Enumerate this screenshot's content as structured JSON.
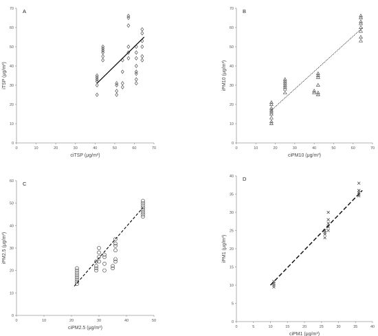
{
  "chart_data": [
    {
      "type": "scatter",
      "panel_label": "A",
      "xlabel": "ciTSP (μg/m³)",
      "ylabel": "iTSP (μg/m³)",
      "xlim": [
        0,
        70
      ],
      "ylim": [
        0,
        70
      ],
      "xticks": [
        0,
        10,
        20,
        30,
        40,
        50,
        60,
        70
      ],
      "yticks": [
        0,
        10,
        20,
        30,
        40,
        50,
        60,
        70
      ],
      "marker": "diamond",
      "points": [
        [
          41,
          25
        ],
        [
          41,
          30
        ],
        [
          41,
          32
        ],
        [
          41,
          33
        ],
        [
          41,
          34
        ],
        [
          41,
          35
        ],
        [
          44,
          43
        ],
        [
          44,
          45
        ],
        [
          44,
          47
        ],
        [
          44,
          48
        ],
        [
          44,
          49
        ],
        [
          44,
          50
        ],
        [
          51,
          25
        ],
        [
          51,
          27
        ],
        [
          51,
          30
        ],
        [
          51,
          31
        ],
        [
          54,
          29
        ],
        [
          54,
          31
        ],
        [
          54,
          37
        ],
        [
          54,
          43
        ],
        [
          57,
          44
        ],
        [
          57,
          47
        ],
        [
          57,
          50
        ],
        [
          57,
          61
        ],
        [
          57,
          65
        ],
        [
          57,
          66
        ],
        [
          61,
          31
        ],
        [
          61,
          33
        ],
        [
          61,
          36
        ],
        [
          61,
          37
        ],
        [
          61,
          40
        ],
        [
          61,
          44
        ],
        [
          61,
          47
        ],
        [
          61,
          50
        ],
        [
          64,
          43
        ],
        [
          64,
          45
        ],
        [
          64,
          50
        ],
        [
          64,
          53
        ],
        [
          64,
          57
        ],
        [
          64,
          59
        ]
      ],
      "trendline": {
        "style": "solid",
        "from": [
          41,
          31
        ],
        "to": [
          65,
          55
        ]
      }
    },
    {
      "type": "scatter",
      "panel_label": "B",
      "xlabel": "ciPM10 (μg/m³)",
      "ylabel": "iPM10 (μg/m³)",
      "xlim": [
        0,
        70
      ],
      "ylim": [
        0,
        70
      ],
      "xticks": [
        0,
        10,
        20,
        30,
        40,
        50,
        60,
        70
      ],
      "yticks": [
        0,
        10,
        20,
        30,
        40,
        50,
        60,
        70
      ],
      "marker": "triangle",
      "points": [
        [
          18,
          10
        ],
        [
          18,
          11
        ],
        [
          18,
          13
        ],
        [
          18,
          15
        ],
        [
          18,
          16
        ],
        [
          18,
          17
        ],
        [
          18,
          18
        ],
        [
          18,
          20
        ],
        [
          18,
          21
        ],
        [
          25,
          26
        ],
        [
          25,
          28
        ],
        [
          25,
          29
        ],
        [
          25,
          30
        ],
        [
          25,
          31
        ],
        [
          25,
          32
        ],
        [
          25,
          33
        ],
        [
          40,
          26
        ],
        [
          40,
          27
        ],
        [
          42,
          25
        ],
        [
          42,
          26
        ],
        [
          42,
          30
        ],
        [
          42,
          34
        ],
        [
          42,
          35
        ],
        [
          42,
          36
        ],
        [
          64,
          53
        ],
        [
          64,
          55
        ],
        [
          64,
          58
        ],
        [
          64,
          60
        ],
        [
          64,
          62
        ],
        [
          64,
          63
        ],
        [
          64,
          65
        ],
        [
          64,
          66
        ]
      ],
      "trendline": {
        "style": "dotted",
        "from": [
          18,
          17
        ],
        "to": [
          65,
          60
        ]
      }
    },
    {
      "type": "scatter",
      "panel_label": "C",
      "xlabel": "ciPM2.5 (μg/m³)",
      "ylabel": "iPM2.5 (μg/m³)",
      "xlim": [
        0,
        50
      ],
      "ylim": [
        0,
        60
      ],
      "xticks": [
        0,
        10,
        20,
        30,
        40,
        50
      ],
      "yticks": [
        0,
        10,
        20,
        30,
        40,
        50,
        60
      ],
      "marker": "circle",
      "points": [
        [
          22,
          14
        ],
        [
          22,
          15
        ],
        [
          22,
          16
        ],
        [
          22,
          17
        ],
        [
          22,
          18
        ],
        [
          22,
          19
        ],
        [
          22,
          20
        ],
        [
          22,
          21
        ],
        [
          29,
          20
        ],
        [
          29,
          21
        ],
        [
          29,
          22
        ],
        [
          29,
          24
        ],
        [
          30,
          24
        ],
        [
          30,
          26
        ],
        [
          30,
          28
        ],
        [
          30,
          30
        ],
        [
          32,
          20
        ],
        [
          32,
          23
        ],
        [
          32,
          26
        ],
        [
          32,
          27
        ],
        [
          35,
          21
        ],
        [
          35,
          22
        ],
        [
          36,
          24
        ],
        [
          36,
          25
        ],
        [
          36,
          29
        ],
        [
          36,
          31
        ],
        [
          36,
          32
        ],
        [
          36,
          34
        ],
        [
          46,
          44
        ],
        [
          46,
          45
        ],
        [
          46,
          46
        ],
        [
          46,
          47
        ],
        [
          46,
          48
        ],
        [
          46,
          49
        ],
        [
          46,
          50
        ],
        [
          46,
          51
        ]
      ],
      "trendline": {
        "style": "dashed",
        "from": [
          21,
          13
        ],
        "to": [
          46,
          48
        ]
      }
    },
    {
      "type": "scatter",
      "panel_label": "D",
      "xlabel": "ciPM1 (μg/m³)",
      "ylabel": "iPM1 (μg/m³)",
      "xlim": [
        0,
        40
      ],
      "ylim": [
        0,
        40
      ],
      "xticks": [
        0,
        5,
        10,
        15,
        20,
        25,
        30,
        35,
        40
      ],
      "yticks": [
        0,
        5,
        10,
        15,
        20,
        25,
        30,
        35,
        40
      ],
      "marker": "x",
      "points": [
        [
          11,
          9.5
        ],
        [
          11,
          10
        ],
        [
          11,
          10.5
        ],
        [
          11,
          11
        ],
        [
          26,
          23
        ],
        [
          26,
          24
        ],
        [
          26,
          24.5
        ],
        [
          26,
          25
        ],
        [
          27,
          25
        ],
        [
          27,
          26
        ],
        [
          27,
          27
        ],
        [
          27,
          28
        ],
        [
          27,
          30
        ],
        [
          36,
          34.5
        ],
        [
          36,
          35
        ],
        [
          36,
          35.5
        ],
        [
          36,
          36
        ],
        [
          36,
          38
        ]
      ],
      "trendline": {
        "style": "longdash",
        "from": [
          10,
          10
        ],
        "to": [
          37,
          36
        ]
      }
    }
  ]
}
